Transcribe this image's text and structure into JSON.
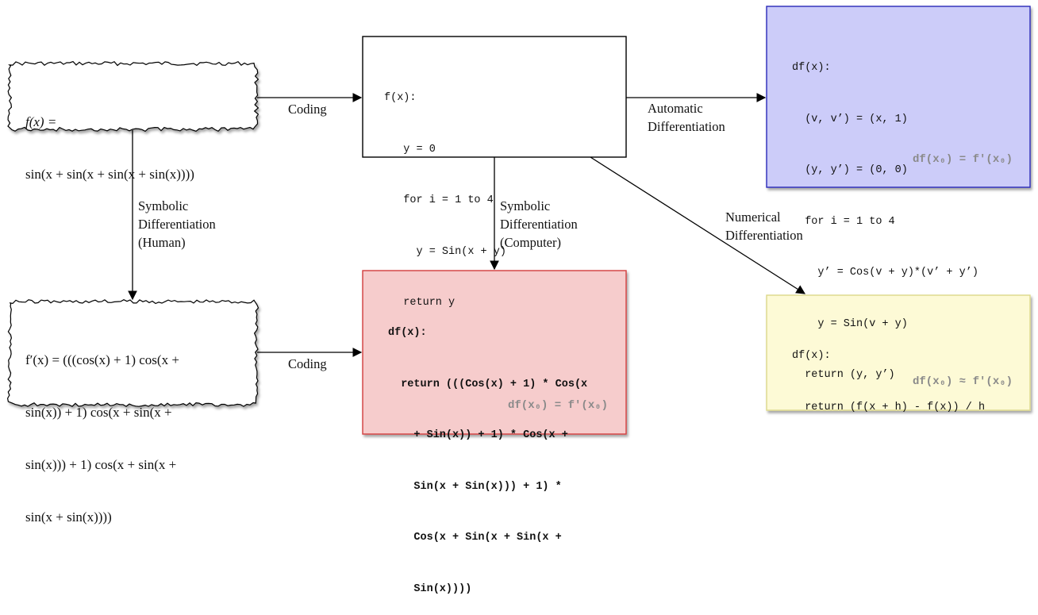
{
  "nodes": {
    "math_function": {
      "lines": [
        "f(x) =",
        "sin(x + sin(x + sin(x + sin(x))))"
      ]
    },
    "code_function": {
      "lines": [
        "f(x):",
        "   y = 0",
        "   for i = 1 to 4",
        "     y = Sin(x + y)",
        "   return y"
      ]
    },
    "automatic_code": {
      "lines": [
        "df(x):",
        "  (v, v’) = (x, 1)",
        "  (y, y’) = (0, 0)",
        "  for i = 1 to 4",
        "    y’ = Cos(v + y)*(v’ + y’)",
        "    y = Sin(v + y)",
        "  return (y, y’)"
      ],
      "note": "df(x₀) = f′(x₀)",
      "fill": "#ccccf9",
      "stroke": "#2b2bb8"
    },
    "math_derivative": {
      "lines": [
        "f′(x) = (((cos(x) + 1) cos(x +",
        "sin(x)) + 1) cos(x + sin(x +",
        "sin(x))) + 1) cos(x + sin(x +",
        "sin(x + sin(x))))"
      ]
    },
    "symbolic_code": {
      "lines": [
        "df(x):",
        "  return (((Cos(x) + 1) * Cos(x",
        "    + Sin(x)) + 1) * Cos(x +",
        "    Sin(x + Sin(x))) + 1) *",
        "    Cos(x + Sin(x + Sin(x +",
        "    Sin(x))))"
      ],
      "note": "df(x₀) = f′(x₀)",
      "fill": "#f6cccc",
      "stroke": "#d23c3c"
    },
    "numerical_code": {
      "lines": [
        "df(x):",
        "  return (f(x + h) - f(x)) / h"
      ],
      "note": "df(x₀) ≈ f′(x₀)",
      "fill": "#fdfad6",
      "stroke": "#dcd88a"
    }
  },
  "edges": {
    "coding_top": "Coding",
    "coding_bottom": "Coding",
    "automatic": "Automatic\nDifferentiation",
    "symbolic_human": "Symbolic\nDifferentiation\n(Human)",
    "symbolic_computer": "Symbolic\nDifferentiation\n(Computer)",
    "numerical": "Numerical\nDifferentiation"
  }
}
